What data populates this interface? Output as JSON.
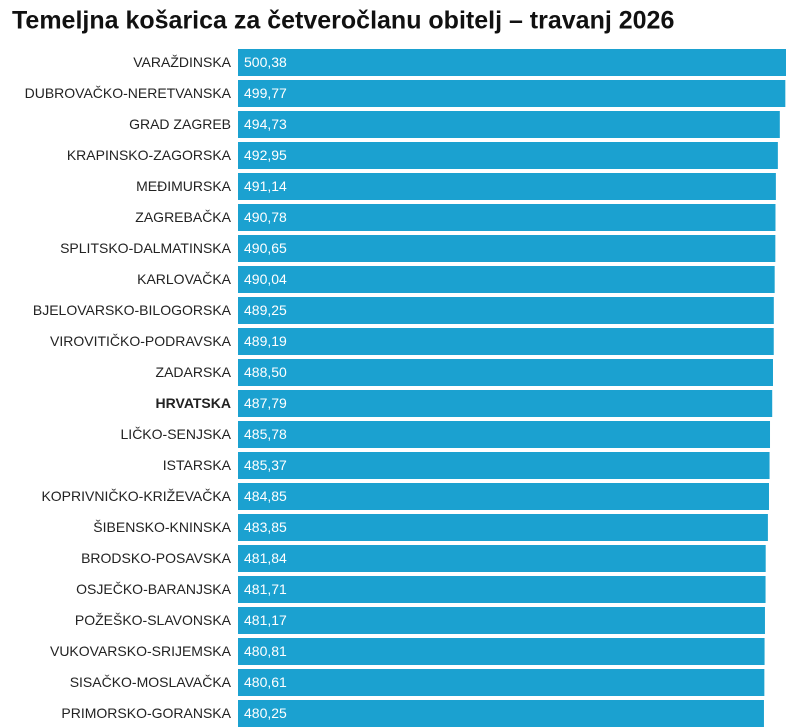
{
  "chart_data": {
    "type": "bar",
    "orientation": "horizontal",
    "title": "Temeljna košarica za četveročlanu obitelj – travanj 2026",
    "categories": [
      "VARAŽDINSKA",
      "DUBROVAČKO-NERETVANSKA",
      "GRAD ZAGREB",
      "KRAPINSKO-ZAGORSKA",
      "MEĐIMURSKA",
      "ZAGREBAČKA",
      "SPLITSKO-DALMATINSKA",
      "KARLOVAČKA",
      "BJELOVARSKO-BILOGORSKA",
      "VIROVITIČKO-PODRAVSKA",
      "ZADARSKA",
      "HRVATSKA",
      "LIČKO-SENJSKA",
      "ISTARSKA",
      "KOPRIVNIČKO-KRIŽEVAČKA",
      "ŠIBENSKO-KNINSKA",
      "BRODSKO-POSAVSKA",
      "OSJEČKO-BARANJSKA",
      "POŽEŠKO-SLAVONSKA",
      "VUKOVARSKO-SRIJEMSKA",
      "SISAČKO-MOSLAVAČKA",
      "PRIMORSKO-GORANSKA"
    ],
    "values": [
      500.38,
      499.77,
      494.73,
      492.95,
      491.14,
      490.78,
      490.65,
      490.04,
      489.25,
      489.19,
      488.5,
      487.79,
      485.78,
      485.37,
      484.85,
      483.85,
      481.84,
      481.71,
      481.17,
      480.81,
      480.61,
      480.25
    ],
    "value_labels": [
      "500,38",
      "499,77",
      "494,73",
      "492,95",
      "491,14",
      "490,78",
      "490,65",
      "490,04",
      "489,25",
      "489,19",
      "488,50",
      "487,79",
      "485,78",
      "485,37",
      "484,85",
      "483,85",
      "481,84",
      "481,71",
      "481,17",
      "480,81",
      "480,61",
      "480,25"
    ],
    "color": "#1ba1d0",
    "highlight": "HRVATSKA"
  }
}
